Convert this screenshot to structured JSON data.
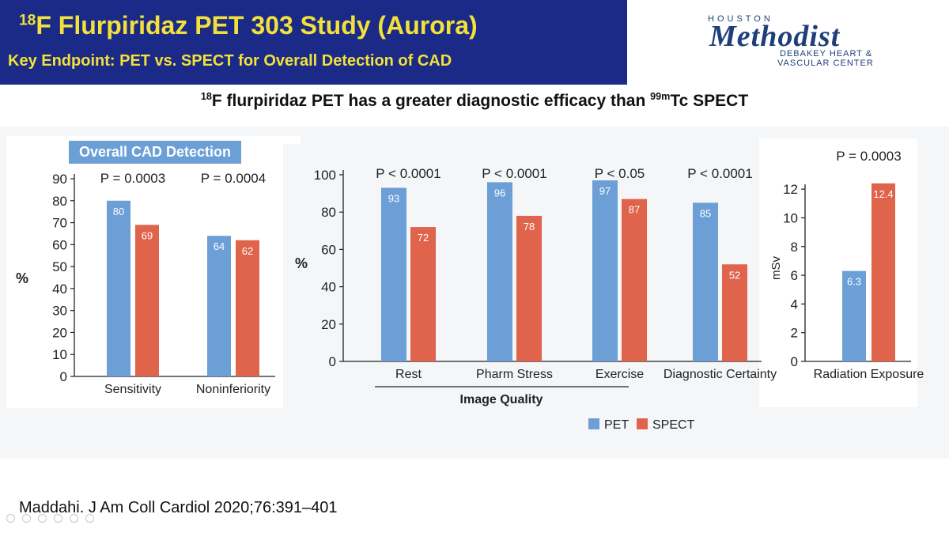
{
  "header": {
    "title_sup": "18",
    "title_main": "F Flurpiridaz PET 303 Study (Aurora)",
    "subtitle": "Key Endpoint: PET vs. SPECT for Overall Detection of CAD",
    "bg_color": "#1b2a86",
    "text_color": "#f2e13b"
  },
  "logo": {
    "top": "HOUSTON",
    "name": "Methodist",
    "line1": "DEBAKEY HEART &",
    "line2": "VASCULAR CENTER"
  },
  "slide_subtitle": {
    "sup1": "18",
    "part1": "F flurpiridaz PET has a greater diagnostic efficacy than ",
    "sup2": "99m",
    "part2": "Tc SPECT"
  },
  "colors": {
    "pet": "#6b9fd6",
    "spect": "#e0634c",
    "axis": "#222222",
    "panel": "#f4f6f8"
  },
  "chart_data": [
    {
      "type": "bar",
      "title": "Overall CAD Detection",
      "categories": [
        "Sensitivity",
        "Noninferiority"
      ],
      "series": [
        {
          "name": "PET",
          "values": [
            80,
            64
          ]
        },
        {
          "name": "SPECT",
          "values": [
            69,
            62
          ]
        }
      ],
      "pvalues": [
        "P = 0.0003",
        "P = 0.0004"
      ],
      "ylabel": "%",
      "ylim": [
        0,
        90
      ],
      "yticks": [
        0,
        10,
        20,
        30,
        40,
        50,
        60,
        70,
        80,
        90
      ]
    },
    {
      "type": "bar",
      "title": "",
      "categories": [
        "Rest",
        "Pharm Stress",
        "Exercise",
        "Diagnostic Certainty"
      ],
      "series": [
        {
          "name": "PET",
          "values": [
            93,
            96,
            97,
            85
          ]
        },
        {
          "name": "SPECT",
          "values": [
            72,
            78,
            87,
            52
          ]
        }
      ],
      "pvalues": [
        "P < 0.0001",
        "P < 0.0001",
        "P < 0.05",
        "P < 0.0001"
      ],
      "group_label": "Image Quality",
      "ylabel": "%",
      "ylim": [
        0,
        100
      ],
      "yticks": [
        0,
        20,
        40,
        60,
        80,
        100
      ],
      "legend": [
        {
          "name": "PET"
        },
        {
          "name": "SPECT"
        }
      ],
      "legend_position": "bottom"
    },
    {
      "type": "bar",
      "title": "",
      "categories": [
        "Radiation Exposure"
      ],
      "series": [
        {
          "name": "PET",
          "values": [
            6.3
          ]
        },
        {
          "name": "SPECT",
          "values": [
            12.4
          ]
        }
      ],
      "pvalues": [
        "P = 0.0003"
      ],
      "ylabel": "mSv",
      "ylim": [
        0,
        13
      ],
      "yticks": [
        0,
        2,
        4,
        6,
        8,
        10,
        12
      ]
    }
  ],
  "citation": "Maddahi. J Am Coll Cardiol 2020;76:391–401"
}
